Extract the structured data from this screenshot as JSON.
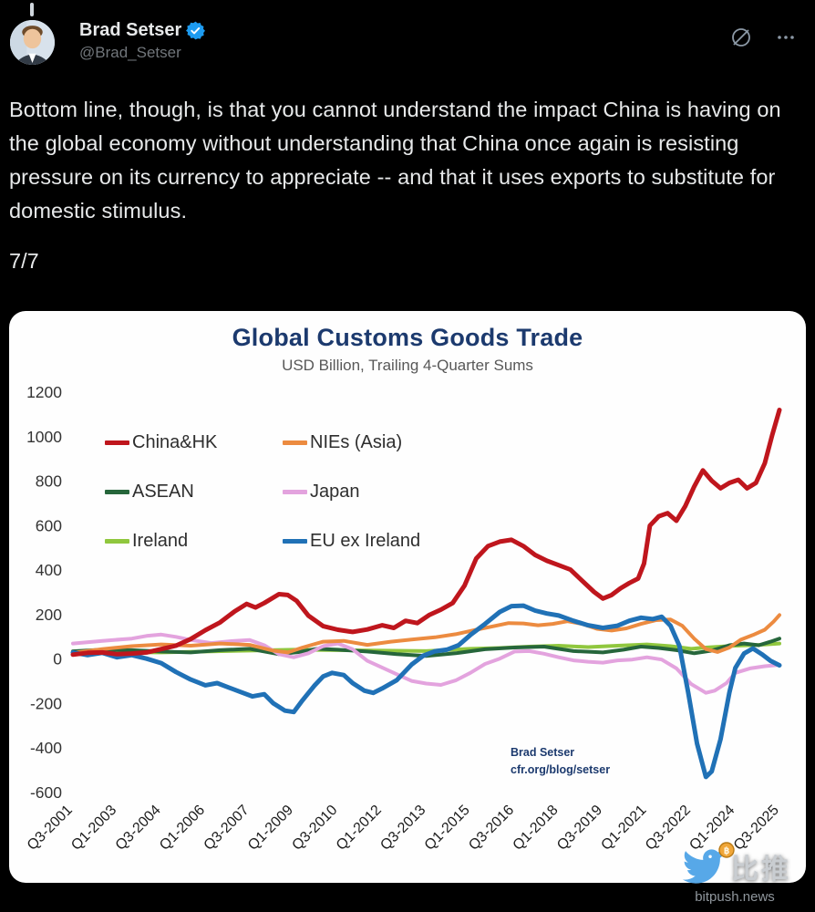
{
  "header": {
    "display_name": "Brad Setser",
    "handle": "@Brad_Setser"
  },
  "tweet": {
    "body": "Bottom line, though, is that you cannot understand the impact China is having on the global economy without understanding that China once again is resisting pressure on its currency to appreciate -- and that it uses exports to substitute for domestic stimulus.",
    "thread_position": "7/7"
  },
  "chart_data": {
    "type": "line",
    "title": "Global Customs Goods Trade",
    "subtitle": "USD Billion, Trailing 4-Quarter Sums",
    "ylim": [
      -600,
      1200
    ],
    "ytick_step": 200,
    "grid": false,
    "legend_position": "upper-left-inside",
    "x_range": [
      2001.5,
      2025.5
    ],
    "x_tick_labels": [
      "Q3-2001",
      "Q1-2003",
      "Q3-2004",
      "Q1-2006",
      "Q3-2007",
      "Q1-2009",
      "Q3-2010",
      "Q1-2012",
      "Q3-2013",
      "Q1-2015",
      "Q3-2016",
      "Q1-2018",
      "Q3-2019",
      "Q1-2021",
      "Q3-2022",
      "Q1-2024",
      "Q3-2025"
    ],
    "watermark_line1": "Brad Setser",
    "watermark_line2": "cfr.org/blog/setser",
    "draw_order": [
      4,
      2,
      3,
      1,
      5,
      0
    ],
    "series": [
      {
        "name": "China&HK",
        "color": "#bf161d",
        "width": 5,
        "points": [
          [
            2001.5,
            20
          ],
          [
            2002,
            28
          ],
          [
            2002.5,
            30
          ],
          [
            2003,
            22
          ],
          [
            2003.5,
            25
          ],
          [
            2004,
            30
          ],
          [
            2004.5,
            45
          ],
          [
            2005,
            60
          ],
          [
            2005.5,
            90
          ],
          [
            2006,
            130
          ],
          [
            2006.5,
            165
          ],
          [
            2007,
            215
          ],
          [
            2007.4,
            248
          ],
          [
            2007.7,
            232
          ],
          [
            2008,
            252
          ],
          [
            2008.5,
            292
          ],
          [
            2008.8,
            288
          ],
          [
            2009.1,
            262
          ],
          [
            2009.5,
            195
          ],
          [
            2010,
            148
          ],
          [
            2010.5,
            132
          ],
          [
            2011,
            122
          ],
          [
            2011.5,
            133
          ],
          [
            2012,
            152
          ],
          [
            2012.4,
            140
          ],
          [
            2012.8,
            172
          ],
          [
            2013.2,
            162
          ],
          [
            2013.6,
            198
          ],
          [
            2014,
            222
          ],
          [
            2014.4,
            252
          ],
          [
            2014.8,
            330
          ],
          [
            2015.2,
            452
          ],
          [
            2015.6,
            508
          ],
          [
            2016,
            528
          ],
          [
            2016.4,
            536
          ],
          [
            2016.8,
            508
          ],
          [
            2017.2,
            468
          ],
          [
            2017.6,
            442
          ],
          [
            2018,
            422
          ],
          [
            2018.4,
            402
          ],
          [
            2018.8,
            352
          ],
          [
            2019.2,
            302
          ],
          [
            2019.5,
            272
          ],
          [
            2019.8,
            288
          ],
          [
            2020.1,
            318
          ],
          [
            2020.4,
            342
          ],
          [
            2020.7,
            362
          ],
          [
            2020.9,
            430
          ],
          [
            2021.1,
            600
          ],
          [
            2021.4,
            642
          ],
          [
            2021.7,
            656
          ],
          [
            2022,
            622
          ],
          [
            2022.3,
            688
          ],
          [
            2022.6,
            775
          ],
          [
            2022.9,
            848
          ],
          [
            2023.2,
            802
          ],
          [
            2023.5,
            768
          ],
          [
            2023.8,
            792
          ],
          [
            2024.1,
            806
          ],
          [
            2024.4,
            768
          ],
          [
            2024.7,
            792
          ],
          [
            2025,
            880
          ],
          [
            2025.25,
            1005
          ],
          [
            2025.5,
            1120
          ]
        ]
      },
      {
        "name": "NIEs (Asia)",
        "color": "#ec8b40",
        "width": 4,
        "points": [
          [
            2001.5,
            28
          ],
          [
            2002.5,
            45
          ],
          [
            2003.5,
            58
          ],
          [
            2004.5,
            66
          ],
          [
            2005.5,
            60
          ],
          [
            2006.5,
            70
          ],
          [
            2007.5,
            64
          ],
          [
            2008.3,
            38
          ],
          [
            2008.8,
            30
          ],
          [
            2009.3,
            52
          ],
          [
            2010,
            78
          ],
          [
            2010.7,
            82
          ],
          [
            2011.5,
            64
          ],
          [
            2012.3,
            78
          ],
          [
            2013,
            88
          ],
          [
            2013.8,
            98
          ],
          [
            2014.5,
            112
          ],
          [
            2015.2,
            132
          ],
          [
            2015.8,
            148
          ],
          [
            2016.3,
            162
          ],
          [
            2016.8,
            160
          ],
          [
            2017.3,
            152
          ],
          [
            2017.8,
            158
          ],
          [
            2018.3,
            170
          ],
          [
            2018.8,
            158
          ],
          [
            2019.3,
            136
          ],
          [
            2019.8,
            128
          ],
          [
            2020.3,
            138
          ],
          [
            2020.8,
            158
          ],
          [
            2021.3,
            175
          ],
          [
            2021.8,
            178
          ],
          [
            2022.2,
            150
          ],
          [
            2022.6,
            92
          ],
          [
            2023,
            45
          ],
          [
            2023.4,
            32
          ],
          [
            2023.8,
            52
          ],
          [
            2024.2,
            88
          ],
          [
            2024.6,
            108
          ],
          [
            2025,
            132
          ],
          [
            2025.3,
            168
          ],
          [
            2025.5,
            198
          ]
        ]
      },
      {
        "name": "ASEAN",
        "color": "#26663b",
        "width": 4,
        "points": [
          [
            2001.5,
            35
          ],
          [
            2002.5,
            42
          ],
          [
            2003.5,
            40
          ],
          [
            2004.5,
            34
          ],
          [
            2005.5,
            30
          ],
          [
            2006.5,
            40
          ],
          [
            2007.5,
            46
          ],
          [
            2008.5,
            22
          ],
          [
            2009.2,
            32
          ],
          [
            2009.8,
            46
          ],
          [
            2010.5,
            42
          ],
          [
            2011.5,
            34
          ],
          [
            2012.5,
            22
          ],
          [
            2013.5,
            14
          ],
          [
            2014.5,
            26
          ],
          [
            2015.5,
            44
          ],
          [
            2016.5,
            52
          ],
          [
            2017.5,
            56
          ],
          [
            2018.5,
            36
          ],
          [
            2019.5,
            30
          ],
          [
            2020.2,
            42
          ],
          [
            2020.8,
            56
          ],
          [
            2021.4,
            50
          ],
          [
            2022,
            40
          ],
          [
            2022.6,
            26
          ],
          [
            2023.2,
            38
          ],
          [
            2023.8,
            62
          ],
          [
            2024.3,
            70
          ],
          [
            2024.8,
            62
          ],
          [
            2025.2,
            78
          ],
          [
            2025.5,
            92
          ]
        ]
      },
      {
        "name": "Japan",
        "color": "#e3a3de",
        "width": 4,
        "points": [
          [
            2001.5,
            70
          ],
          [
            2002.5,
            82
          ],
          [
            2003.5,
            92
          ],
          [
            2004,
            104
          ],
          [
            2004.5,
            110
          ],
          [
            2005,
            100
          ],
          [
            2005.5,
            86
          ],
          [
            2006.2,
            72
          ],
          [
            2007,
            82
          ],
          [
            2007.5,
            86
          ],
          [
            2008,
            62
          ],
          [
            2008.5,
            22
          ],
          [
            2009,
            8
          ],
          [
            2009.5,
            26
          ],
          [
            2010,
            58
          ],
          [
            2010.5,
            70
          ],
          [
            2011,
            44
          ],
          [
            2011.5,
            -8
          ],
          [
            2012,
            -38
          ],
          [
            2012.5,
            -68
          ],
          [
            2013,
            -98
          ],
          [
            2013.5,
            -110
          ],
          [
            2014,
            -116
          ],
          [
            2014.5,
            -96
          ],
          [
            2015,
            -62
          ],
          [
            2015.5,
            -22
          ],
          [
            2016,
            2
          ],
          [
            2016.5,
            34
          ],
          [
            2017,
            36
          ],
          [
            2017.5,
            24
          ],
          [
            2018,
            8
          ],
          [
            2018.5,
            -6
          ],
          [
            2019,
            -12
          ],
          [
            2019.5,
            -16
          ],
          [
            2020,
            -6
          ],
          [
            2020.5,
            -2
          ],
          [
            2021,
            8
          ],
          [
            2021.5,
            -2
          ],
          [
            2022,
            -42
          ],
          [
            2022.5,
            -112
          ],
          [
            2023,
            -152
          ],
          [
            2023.3,
            -142
          ],
          [
            2023.7,
            -108
          ],
          [
            2024,
            -62
          ],
          [
            2024.5,
            -42
          ],
          [
            2025,
            -32
          ],
          [
            2025.5,
            -26
          ]
        ]
      },
      {
        "name": "Ireland",
        "color": "#90c73e",
        "width": 4,
        "points": [
          [
            2001.5,
            28
          ],
          [
            2003,
            30
          ],
          [
            2004.5,
            30
          ],
          [
            2006,
            34
          ],
          [
            2007.5,
            38
          ],
          [
            2009,
            42
          ],
          [
            2010.5,
            40
          ],
          [
            2012,
            38
          ],
          [
            2013.5,
            36
          ],
          [
            2015,
            46
          ],
          [
            2016,
            50
          ],
          [
            2017,
            56
          ],
          [
            2018,
            60
          ],
          [
            2019,
            54
          ],
          [
            2020,
            60
          ],
          [
            2021,
            66
          ],
          [
            2021.8,
            58
          ],
          [
            2022.5,
            46
          ],
          [
            2023,
            52
          ],
          [
            2024,
            60
          ],
          [
            2024.8,
            64
          ],
          [
            2025.5,
            70
          ]
        ]
      },
      {
        "name": "EU ex Ireland",
        "color": "#2071b6",
        "width": 5,
        "points": [
          [
            2001.5,
            30
          ],
          [
            2002,
            18
          ],
          [
            2002.5,
            28
          ],
          [
            2003,
            8
          ],
          [
            2003.5,
            18
          ],
          [
            2004,
            2
          ],
          [
            2004.5,
            -18
          ],
          [
            2005,
            -58
          ],
          [
            2005.5,
            -92
          ],
          [
            2006,
            -118
          ],
          [
            2006.4,
            -108
          ],
          [
            2006.8,
            -128
          ],
          [
            2007.2,
            -148
          ],
          [
            2007.6,
            -168
          ],
          [
            2008,
            -158
          ],
          [
            2008.3,
            -198
          ],
          [
            2008.7,
            -232
          ],
          [
            2009,
            -238
          ],
          [
            2009.3,
            -185
          ],
          [
            2009.7,
            -120
          ],
          [
            2010,
            -78
          ],
          [
            2010.3,
            -62
          ],
          [
            2010.7,
            -72
          ],
          [
            2011,
            -108
          ],
          [
            2011.4,
            -142
          ],
          [
            2011.7,
            -152
          ],
          [
            2012,
            -132
          ],
          [
            2012.5,
            -95
          ],
          [
            2013,
            -25
          ],
          [
            2013.4,
            15
          ],
          [
            2013.8,
            35
          ],
          [
            2014.2,
            42
          ],
          [
            2014.6,
            62
          ],
          [
            2015,
            108
          ],
          [
            2015.5,
            158
          ],
          [
            2016,
            212
          ],
          [
            2016.4,
            238
          ],
          [
            2016.8,
            240
          ],
          [
            2017.2,
            218
          ],
          [
            2017.6,
            205
          ],
          [
            2018,
            196
          ],
          [
            2018.5,
            172
          ],
          [
            2019,
            152
          ],
          [
            2019.5,
            140
          ],
          [
            2020,
            150
          ],
          [
            2020.4,
            172
          ],
          [
            2020.8,
            186
          ],
          [
            2021.2,
            180
          ],
          [
            2021.5,
            190
          ],
          [
            2021.8,
            150
          ],
          [
            2022.1,
            60
          ],
          [
            2022.4,
            -150
          ],
          [
            2022.7,
            -380
          ],
          [
            2023,
            -530
          ],
          [
            2023.2,
            -505
          ],
          [
            2023.5,
            -360
          ],
          [
            2023.8,
            -150
          ],
          [
            2024,
            -40
          ],
          [
            2024.3,
            25
          ],
          [
            2024.6,
            48
          ],
          [
            2024.9,
            22
          ],
          [
            2025.2,
            -8
          ],
          [
            2025.5,
            -28
          ]
        ]
      }
    ]
  },
  "footer_watermark": {
    "brand": "比推",
    "domain": "bitpush.news"
  }
}
